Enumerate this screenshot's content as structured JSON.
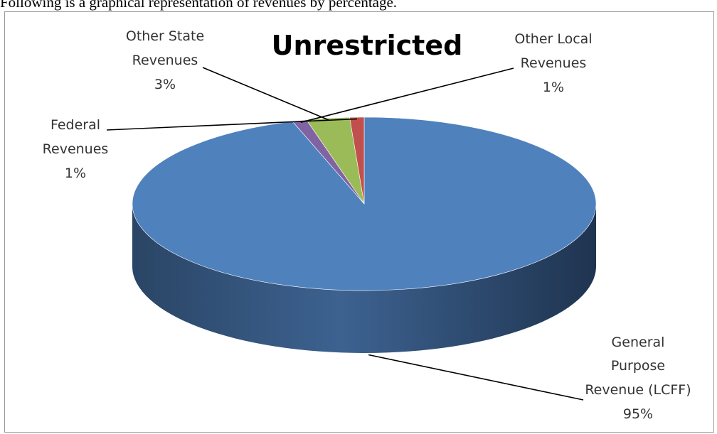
{
  "caption": "Following is a graphical representation of revenues by percentage.",
  "chart_data": {
    "type": "pie",
    "title": "Unrestricted",
    "three_d": true,
    "labels": [
      {
        "name_lines": [
          "General",
          "Purpose",
          "Revenue (LCFF)"
        ],
        "value_label": "95%"
      },
      {
        "name_lines": [
          "Federal",
          "Revenues"
        ],
        "value_label": "1%"
      },
      {
        "name_lines": [
          "Other State",
          "Revenues"
        ],
        "value_label": "3%"
      },
      {
        "name_lines": [
          "Other Local",
          "Revenues"
        ],
        "value_label": "1%"
      }
    ],
    "values": [
      95,
      1,
      3,
      1
    ],
    "colors": [
      "#4f81bd",
      "#c0504d",
      "#9bbb59",
      "#8064a2"
    ],
    "side_color": "#2c4a6e",
    "legend": "none",
    "data_labels": "outside with leader lines"
  }
}
